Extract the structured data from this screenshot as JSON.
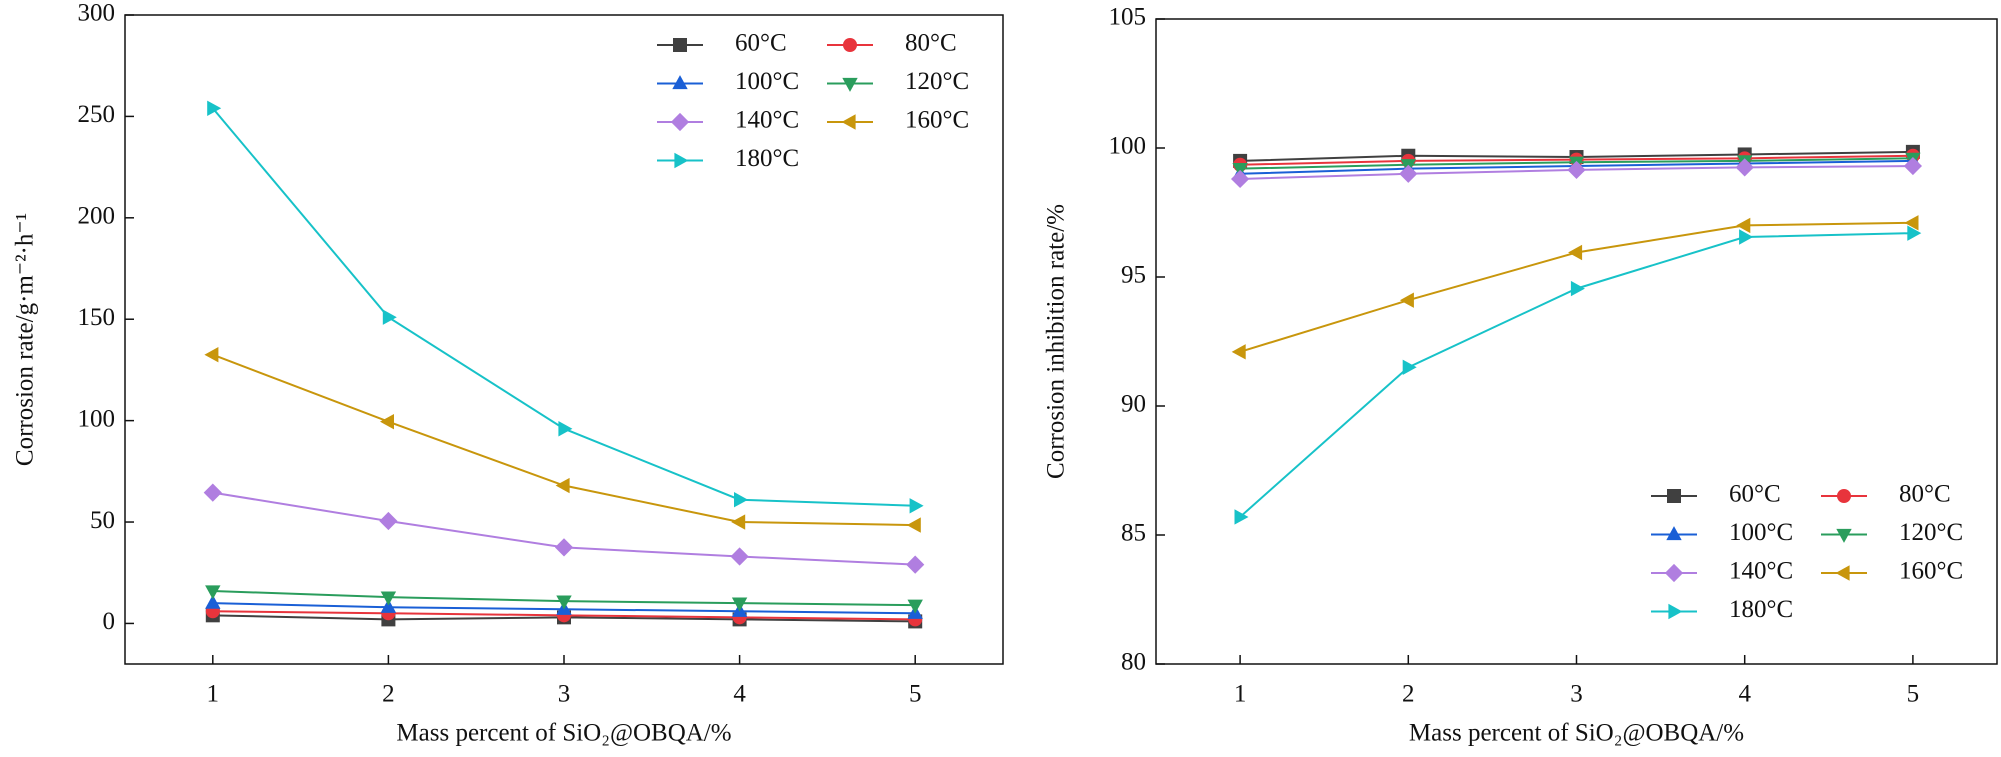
{
  "chart_data": [
    {
      "type": "line",
      "xlabel": "Mass percent of SiO₂@OBQA/%",
      "ylabel": "Corrosion rate/g·m⁻²·h⁻¹",
      "x": [
        1,
        2,
        3,
        4,
        5
      ],
      "xlim": [
        0.5,
        5.5
      ],
      "xticks": [
        1,
        2,
        3,
        4,
        5
      ],
      "ylim": [
        -20,
        300
      ],
      "yticks": [
        0,
        50,
        100,
        150,
        200,
        250,
        300
      ],
      "legend": "upper right",
      "series": [
        {
          "name": "60°C",
          "color": "#404040",
          "marker": "square",
          "values": [
            4,
            2,
            3,
            2,
            1
          ]
        },
        {
          "name": "80°C",
          "color": "#e8343c",
          "marker": "circle",
          "values": [
            6,
            5,
            4,
            3,
            2
          ]
        },
        {
          "name": "100°C",
          "color": "#1a5fd6",
          "marker": "triangle-up",
          "values": [
            10,
            8,
            7,
            6,
            5
          ]
        },
        {
          "name": "120°C",
          "color": "#2a9d5c",
          "marker": "triangle-down",
          "values": [
            16,
            13,
            11,
            10,
            9
          ]
        },
        {
          "name": "140°C",
          "color": "#b07ee0",
          "marker": "diamond",
          "values": [
            64.5,
            50.5,
            37.5,
            33,
            29
          ]
        },
        {
          "name": "160°C",
          "color": "#c8960c",
          "marker": "triangle-left",
          "values": [
            132.5,
            99.5,
            68,
            50,
            48.5
          ]
        },
        {
          "name": "180°C",
          "color": "#17c2c8",
          "marker": "triangle-right",
          "values": [
            254,
            151,
            96,
            61,
            58
          ]
        }
      ]
    },
    {
      "type": "line",
      "xlabel": "Mass percent of SiO₂@OBQA/%",
      "ylabel": "Corrosion inhibition rate/%",
      "x": [
        1,
        2,
        3,
        4,
        5
      ],
      "xlim": [
        0.5,
        5.5
      ],
      "xticks": [
        1,
        2,
        3,
        4,
        5
      ],
      "ylim": [
        80,
        105
      ],
      "yticks": [
        80,
        85,
        90,
        95,
        100,
        105
      ],
      "legend": "lower right",
      "series": [
        {
          "name": "60°C",
          "color": "#404040",
          "marker": "square",
          "values": [
            99.5,
            99.7,
            99.65,
            99.75,
            99.85
          ]
        },
        {
          "name": "80°C",
          "color": "#e8343c",
          "marker": "circle",
          "values": [
            99.35,
            99.5,
            99.55,
            99.6,
            99.7
          ]
        },
        {
          "name": "100°C",
          "color": "#1a5fd6",
          "marker": "triangle-up",
          "values": [
            99.0,
            99.2,
            99.3,
            99.4,
            99.5
          ]
        },
        {
          "name": "120°C",
          "color": "#2a9d5c",
          "marker": "triangle-down",
          "values": [
            99.2,
            99.35,
            99.45,
            99.5,
            99.6
          ]
        },
        {
          "name": "140°C",
          "color": "#b07ee0",
          "marker": "diamond",
          "values": [
            98.8,
            99.0,
            99.15,
            99.25,
            99.3
          ]
        },
        {
          "name": "160°C",
          "color": "#c8960c",
          "marker": "triangle-left",
          "values": [
            92.1,
            94.1,
            95.95,
            97.0,
            97.1
          ]
        },
        {
          "name": "180°C",
          "color": "#17c2c8",
          "marker": "triangle-right",
          "values": [
            85.7,
            91.5,
            94.55,
            96.55,
            96.7
          ]
        }
      ]
    }
  ]
}
